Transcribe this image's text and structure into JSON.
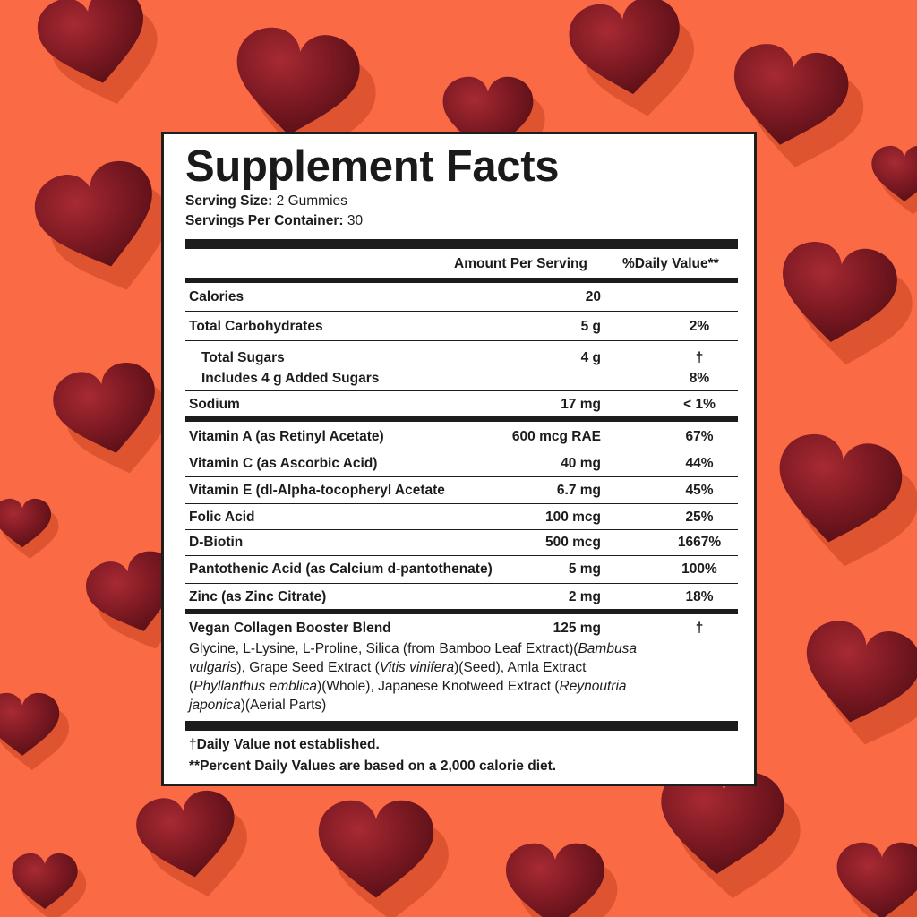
{
  "title": "Supplement Facts",
  "serving_size": {
    "label": "Serving Size:",
    "value": "2 Gummies"
  },
  "servings_per_container": {
    "label": "Servings Per Container:",
    "value": "30"
  },
  "header": {
    "amount": "Amount Per Serving",
    "dv": "%Daily Value**"
  },
  "rows": {
    "calories": {
      "name": "Calories",
      "amount": "20",
      "dv": ""
    },
    "carbs": {
      "name": "Total Carbohydrates",
      "amount": "5 g",
      "dv": "2%"
    },
    "sugars": {
      "name": "Total Sugars",
      "amount": "4 g",
      "dv": "†"
    },
    "added": {
      "name": "Includes 4 g Added Sugars",
      "dv": "8%"
    },
    "sodium": {
      "name": "Sodium",
      "amount": "17 mg",
      "dv": "< 1%"
    },
    "vita": {
      "name": "Vitamin A (as Retinyl Acetate)",
      "amount": "600 mcg RAE",
      "dv": "67%"
    },
    "vitc": {
      "name": "Vitamin C (as Ascorbic Acid)",
      "amount": "40 mg",
      "dv": "44%"
    },
    "vite": {
      "name": "Vitamin E (dl-Alpha-tocopheryl Acetate",
      "amount": "6.7 mg",
      "dv": "45%"
    },
    "folic": {
      "name": "Folic Acid",
      "amount": "100 mcg",
      "dv": "25%"
    },
    "biotin": {
      "name": "D-Biotin",
      "amount": "500 mcg",
      "dv": "1667%"
    },
    "panto": {
      "name": "Pantothenic Acid (as Calcium d-pantothenate)",
      "amount": "5 mg",
      "dv": "100%"
    },
    "zinc": {
      "name": "Zinc (as Zinc Citrate)",
      "amount": "2 mg",
      "dv": "18%"
    },
    "blend": {
      "name": "Vegan Collagen Booster Blend",
      "amount": "125 mg",
      "dv": "†"
    }
  },
  "blend_parts": {
    "p1": "Glycine, L-Lysine, L-Proline, Silica (from Bamboo Leaf Extract)(",
    "i1": "Bambusa vulgaris",
    "p2": "), Grape Seed Extract (",
    "i2": "Vitis vinifera",
    "p3": ")(Seed), Amla Extract (",
    "i3": "Phyllanthus emblica",
    "p4": ")(Whole), Japanese Knotweed Extract (",
    "i4": "Reynoutria japonica",
    "p5": ")(Aerial Parts)"
  },
  "footnotes": {
    "dagger": "†Daily Value not established.",
    "percent": "**Percent Daily Values are based on a 2,000 calorie diet."
  },
  "colors": {
    "background": "#fa6a45",
    "gummy": "#7a1620",
    "text": "#1c1c1c",
    "panel": "#ffffff"
  },
  "icons": {
    "gummy": "heart-shaped-gummy"
  }
}
